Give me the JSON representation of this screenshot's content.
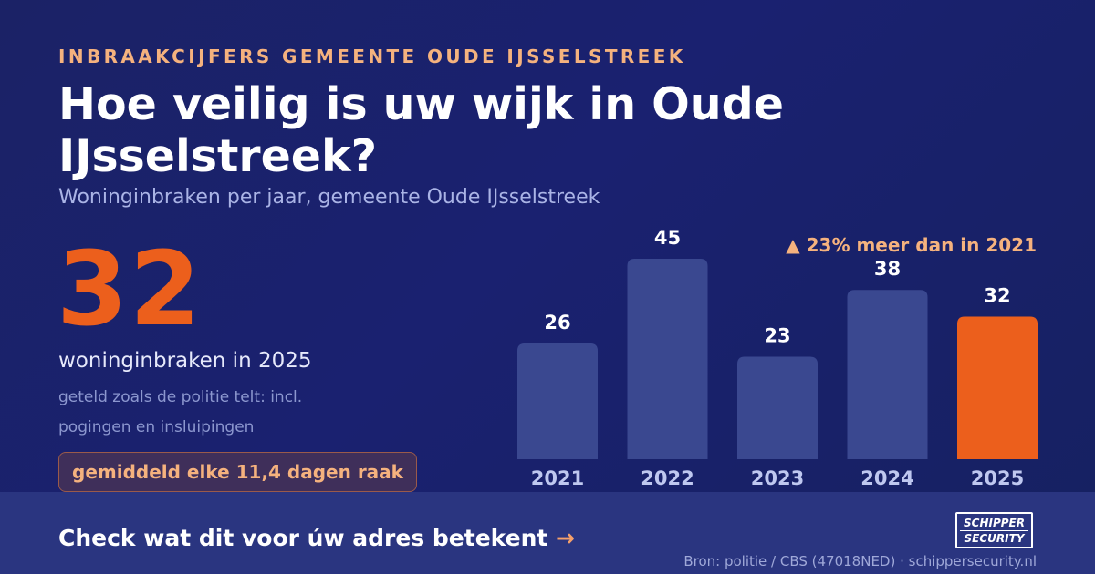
{
  "header": {
    "kicker": "INBRAAKCIJFERS GEMEENTE OUDE IJSSELSTREEK",
    "title": "Hoe veilig is uw wijk in Oude IJsselstreek?",
    "subtitle": "Woninginbraken per jaar, gemeente Oude IJsselstreek"
  },
  "highlight": {
    "value": "32",
    "label": "woninginbraken in 2025",
    "note": "geteld zoals de politie telt: incl. pogingen en insluipingen",
    "pill": "gemiddeld elke 11,4 dagen raak"
  },
  "callout": "▲ 23% meer dan in 2021",
  "footer": {
    "cta_text": "Check wat dit voor úw adres betekent",
    "cta_arrow": "→",
    "logo_line1": "SCHIPPER",
    "logo_line2": "SECURITY",
    "source": "Bron: politie / CBS (47018NED) · schippersecurity.nl"
  },
  "colors": {
    "bar": "#3a4890",
    "bar_highlight": "#ec5f1c",
    "accent": "#f5b27e",
    "year_label": "#bfc8f0"
  },
  "chart_data": {
    "type": "bar",
    "categories": [
      "2021",
      "2022",
      "2023",
      "2024",
      "2025"
    ],
    "values": [
      26,
      45,
      23,
      38,
      32
    ],
    "highlight_index": 4,
    "title": "",
    "xlabel": "",
    "ylabel": "",
    "ylim": [
      0,
      45
    ],
    "grid": false,
    "legend": "none"
  }
}
